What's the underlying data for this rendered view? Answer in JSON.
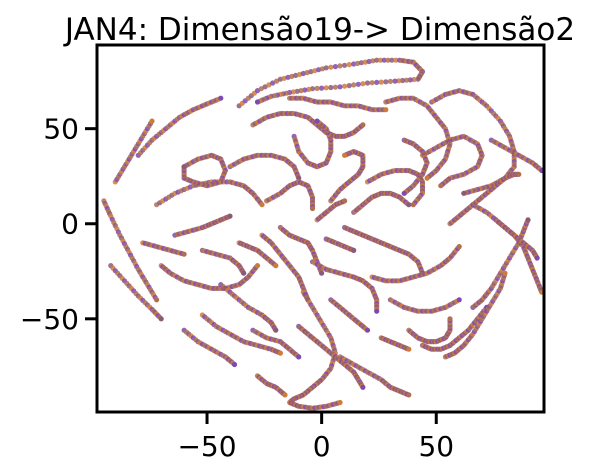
{
  "chart_data": {
    "type": "scatter",
    "title": "JAN4: Dimensão19-> Dimensão2",
    "xlabel": "",
    "ylabel": "",
    "xlim": [
      -98,
      97
    ],
    "ylim": [
      -99,
      94
    ],
    "xticks": [
      -50,
      0,
      50
    ],
    "yticks": [
      -50,
      0,
      50
    ],
    "xtick_labels": [
      "−50",
      "0",
      "50"
    ],
    "ytick_labels": [
      "−50",
      "0",
      "50"
    ],
    "grid": false,
    "legend": "none",
    "colors": [
      "#8a5a7a",
      "#d07a3a",
      "#7d4ab0",
      "#b0704e"
    ],
    "series": [
      {
        "x": [
          -36,
          -28,
          -18,
          -8,
          2,
          14,
          24,
          34,
          40,
          44,
          42,
          32,
          20,
          8,
          -4,
          -14,
          -22,
          -28
        ],
        "y": [
          62,
          70,
          76,
          79,
          82,
          84,
          86,
          86,
          85,
          80,
          76,
          75,
          74,
          72,
          71,
          69,
          67,
          64
        ]
      },
      {
        "x": [
          -95,
          -92,
          -88,
          -84,
          -80,
          -76,
          -72
        ],
        "y": [
          12,
          4,
          -6,
          -15,
          -24,
          -32,
          -40
        ]
      },
      {
        "x": [
          -92,
          -86,
          -80,
          -74,
          -70
        ],
        "y": [
          -22,
          -30,
          -38,
          -45,
          -50
        ]
      },
      {
        "x": [
          -90,
          -86,
          -82,
          -78,
          -74
        ],
        "y": [
          22,
          30,
          38,
          46,
          54
        ]
      },
      {
        "x": [
          -80,
          -74,
          -68,
          -62,
          -56,
          -50,
          -44
        ],
        "y": [
          36,
          44,
          50,
          56,
          60,
          63,
          66
        ]
      },
      {
        "x": [
          -72,
          -64,
          -56,
          -48,
          -40,
          -34,
          -30,
          -26
        ],
        "y": [
          10,
          16,
          20,
          22,
          22,
          20,
          16,
          10
        ]
      },
      {
        "x": [
          -60,
          -54,
          -48,
          -44,
          -42,
          -44,
          -50,
          -56,
          -60,
          -60
        ],
        "y": [
          30,
          34,
          36,
          34,
          28,
          22,
          20,
          22,
          24,
          30
        ]
      },
      {
        "x": [
          -70,
          -66,
          -60,
          -54,
          -48,
          -42,
          -36,
          -32,
          -28
        ],
        "y": [
          -22,
          -26,
          -30,
          -32,
          -34,
          -34,
          -32,
          -28,
          -22
        ]
      },
      {
        "x": [
          -44,
          -38,
          -32,
          -26,
          -22,
          -20
        ],
        "y": [
          -32,
          -38,
          -44,
          -48,
          -52,
          -56
        ]
      },
      {
        "x": [
          -52,
          -46,
          -40,
          -34,
          -28,
          -22,
          -18
        ],
        "y": [
          -48,
          -54,
          -58,
          -62,
          -64,
          -66,
          -68
        ]
      },
      {
        "x": [
          -60,
          -54,
          -48,
          -42,
          -38
        ],
        "y": [
          -56,
          -62,
          -66,
          -70,
          -74
        ]
      },
      {
        "x": [
          -30,
          -24,
          -18,
          -12,
          -6,
          -2,
          2,
          6,
          10,
          14,
          18
        ],
        "y": [
          52,
          56,
          58,
          58,
          56,
          52,
          48,
          46,
          46,
          48,
          52
        ]
      },
      {
        "x": [
          -40,
          -34,
          -28,
          -22,
          -16,
          -12,
          -10
        ],
        "y": [
          30,
          34,
          36,
          36,
          34,
          30,
          24
        ]
      },
      {
        "x": [
          -26,
          -22,
          -18,
          -14,
          -10,
          -8,
          -6
        ],
        "y": [
          -6,
          -10,
          -16,
          -22,
          -28,
          -34,
          -40
        ]
      },
      {
        "x": [
          -12,
          -10,
          -6,
          -2,
          2,
          4,
          4,
          2,
          -2
        ],
        "y": [
          46,
          38,
          32,
          30,
          32,
          38,
          44,
          50,
          54
        ]
      },
      {
        "x": [
          -24,
          -18,
          -14,
          -10,
          -6,
          -4,
          -4
        ],
        "y": [
          12,
          16,
          20,
          22,
          20,
          14,
          8
        ]
      },
      {
        "x": [
          -18,
          -14,
          -10,
          -6,
          -4,
          -2,
          0
        ],
        "y": [
          -2,
          -6,
          -8,
          -10,
          -14,
          -20,
          -26
        ]
      },
      {
        "x": [
          -8,
          -4,
          0,
          4,
          6,
          4,
          0,
          -4,
          -8,
          -12,
          -14,
          -10,
          -4,
          2,
          8
        ],
        "y": [
          -36,
          -44,
          -52,
          -60,
          -68,
          -76,
          -82,
          -86,
          -90,
          -92,
          -94,
          -96,
          -97,
          -96,
          -94
        ]
      },
      {
        "x": [
          -10,
          -6,
          -2,
          2,
          6,
          10,
          14,
          16,
          18
        ],
        "y": [
          -54,
          -58,
          -62,
          -66,
          -70,
          -74,
          -78,
          -82,
          -86
        ]
      },
      {
        "x": [
          8,
          14,
          20,
          26,
          30,
          34,
          38
        ],
        "y": [
          -70,
          -74,
          -78,
          -82,
          -86,
          -88,
          -90
        ]
      },
      {
        "x": [
          -4,
          2,
          8,
          14,
          18,
          22,
          24,
          24
        ],
        "y": [
          -20,
          -24,
          -26,
          -28,
          -30,
          -34,
          -40,
          -46
        ]
      },
      {
        "x": [
          4,
          8,
          12,
          16,
          18,
          18,
          14,
          10
        ],
        "y": [
          12,
          18,
          22,
          26,
          30,
          36,
          38,
          36
        ]
      },
      {
        "x": [
          10,
          14,
          18,
          22,
          26,
          30,
          34,
          38,
          42,
          44
        ],
        "y": [
          -2,
          -4,
          -6,
          -8,
          -10,
          -12,
          -14,
          -16,
          -20,
          -26
        ]
      },
      {
        "x": [
          20,
          26,
          32,
          38,
          42,
          44,
          44,
          40
        ],
        "y": [
          22,
          26,
          28,
          28,
          26,
          22,
          16,
          10
        ]
      },
      {
        "x": [
          14,
          18,
          22,
          26,
          30,
          34,
          38
        ],
        "y": [
          6,
          10,
          14,
          16,
          16,
          14,
          10
        ]
      },
      {
        "x": [
          22,
          28,
          34,
          40,
          46,
          52,
          56,
          60
        ],
        "y": [
          -28,
          -30,
          -30,
          -28,
          -26,
          -22,
          -18,
          -12
        ]
      },
      {
        "x": [
          30,
          36,
          42,
          48,
          54,
          60
        ],
        "y": [
          -40,
          -44,
          -46,
          -46,
          -44,
          -40
        ]
      },
      {
        "x": [
          38,
          42,
          46,
          50,
          54,
          56,
          56
        ],
        "y": [
          -56,
          -60,
          -62,
          -62,
          -60,
          -56,
          -50
        ]
      },
      {
        "x": [
          44,
          48,
          52,
          56,
          60,
          64,
          68,
          72
        ],
        "y": [
          -64,
          -66,
          -66,
          -64,
          -60,
          -56,
          -50,
          -44
        ]
      },
      {
        "x": [
          54,
          58,
          62,
          66,
          70,
          74,
          78,
          80
        ],
        "y": [
          -70,
          -68,
          -64,
          -58,
          -50,
          -42,
          -34,
          -26
        ]
      },
      {
        "x": [
          66,
          70,
          74,
          78,
          82,
          86,
          88,
          90
        ],
        "y": [
          -44,
          -40,
          -34,
          -26,
          -18,
          -10,
          -4,
          2
        ]
      },
      {
        "x": [
          44,
          50,
          56,
          62,
          68,
          70,
          68,
          62,
          56,
          52
        ],
        "y": [
          36,
          40,
          44,
          46,
          42,
          36,
          30,
          26,
          24,
          20
        ]
      },
      {
        "x": [
          48,
          54,
          60,
          66,
          72,
          78,
          82,
          84,
          84,
          80,
          74,
          68,
          62
        ],
        "y": [
          64,
          68,
          70,
          68,
          62,
          54,
          46,
          38,
          30,
          24,
          20,
          18,
          16
        ]
      },
      {
        "x": [
          66,
          72,
          78,
          84,
          88,
          90,
          92,
          94,
          96
        ],
        "y": [
          10,
          6,
          0,
          -6,
          -12,
          -18,
          -24,
          -30,
          -36
        ]
      },
      {
        "x": [
          74,
          80,
          86,
          92,
          96
        ],
        "y": [
          44,
          40,
          36,
          32,
          28
        ]
      },
      {
        "x": [
          28,
          34,
          40,
          46,
          50,
          54,
          56,
          54,
          50,
          46
        ],
        "y": [
          64,
          66,
          66,
          62,
          56,
          50,
          42,
          34,
          28,
          24
        ]
      },
      {
        "x": [
          36,
          40,
          44,
          46,
          44,
          40,
          36
        ],
        "y": [
          44,
          42,
          38,
          32,
          26,
          20,
          16
        ]
      },
      {
        "x": [
          56,
          60,
          64,
          68,
          72,
          76,
          80,
          84,
          86
        ],
        "y": [
          0,
          4,
          8,
          12,
          16,
          20,
          24,
          26,
          26
        ]
      },
      {
        "x": [
          76,
          80,
          84,
          88,
          92,
          94
        ],
        "y": [
          2,
          -2,
          -6,
          -10,
          -14,
          -18
        ]
      },
      {
        "x": [
          -14,
          -8,
          -2,
          4,
          10,
          16,
          22,
          28
        ],
        "y": [
          66,
          66,
          64,
          64,
          62,
          62,
          60,
          60
        ]
      },
      {
        "x": [
          -64,
          -58,
          -52,
          -48,
          -44,
          -40
        ],
        "y": [
          -6,
          -4,
          -2,
          0,
          2,
          4
        ]
      },
      {
        "x": [
          -78,
          -72,
          -66,
          -60
        ],
        "y": [
          -10,
          -12,
          -14,
          -16
        ]
      },
      {
        "x": [
          -52,
          -46,
          -40,
          -36,
          -34
        ],
        "y": [
          -14,
          -16,
          -18,
          -22,
          -26
        ]
      },
      {
        "x": [
          -36,
          -32,
          -28,
          -24,
          -20
        ],
        "y": [
          -10,
          -12,
          -14,
          -18,
          -22
        ]
      },
      {
        "x": [
          -30,
          -24,
          -18,
          -14,
          -10
        ],
        "y": [
          -56,
          -60,
          -62,
          -66,
          -70
        ]
      },
      {
        "x": [
          -28,
          -24,
          -20,
          -16
        ],
        "y": [
          -80,
          -84,
          -86,
          -90
        ]
      },
      {
        "x": [
          4,
          8,
          12,
          16,
          20
        ],
        "y": [
          -40,
          -44,
          -48,
          -52,
          -56
        ]
      },
      {
        "x": [
          26,
          30,
          34,
          38
        ],
        "y": [
          -60,
          -62,
          -64,
          -66
        ]
      },
      {
        "x": [
          2,
          6,
          10,
          14
        ],
        "y": [
          -8,
          -10,
          -12,
          -14
        ]
      },
      {
        "x": [
          -2,
          2,
          6,
          10
        ],
        "y": [
          2,
          6,
          10,
          12
        ]
      }
    ]
  }
}
